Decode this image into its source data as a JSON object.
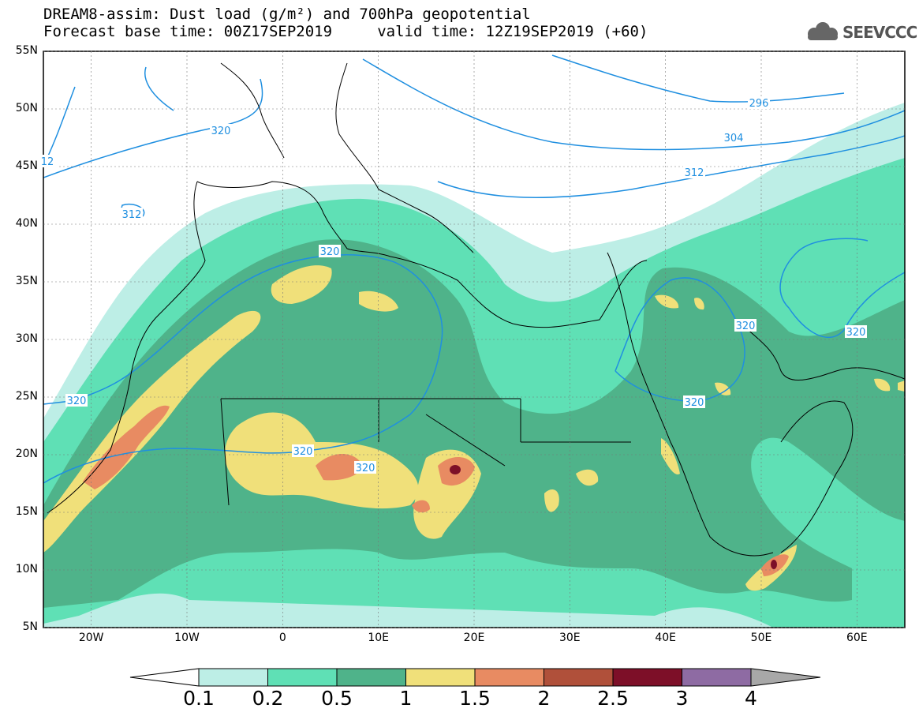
{
  "header": {
    "title_line1": "DREAM8-assim: Dust load (g/m²) and 700hPa geopotential",
    "title_line2": "Forecast base time: 00Z17SEP2019     valid time: 12Z19SEP2019 (+60)",
    "logo_text": "SEEVCCC"
  },
  "map": {
    "lat_labels": [
      "55N",
      "50N",
      "45N",
      "40N",
      "35N",
      "30N",
      "25N",
      "20N",
      "15N",
      "10N",
      "5N"
    ],
    "lon_labels": [
      "20W",
      "10W",
      "0",
      "10E",
      "20E",
      "30E",
      "40E",
      "50E",
      "60E"
    ],
    "lat_range": [
      5,
      55
    ],
    "lon_range": [
      -25,
      65
    ],
    "contour_labels": [
      "296",
      "304",
      "312",
      "312",
      "12",
      "320",
      "320",
      "320",
      "320",
      "320",
      "320",
      "320",
      "320"
    ]
  },
  "legend": {
    "levels": [
      "0.1",
      "0.2",
      "0.5",
      "1",
      "1.5",
      "2",
      "2.5",
      "3",
      "4"
    ],
    "colors": [
      "#bdeee6",
      "#5fe0b5",
      "#4fb38a",
      "#f0e07a",
      "#e88b62",
      "#b0503a",
      "#7d0f28",
      "#8e6ba3",
      "#a8a8a8"
    ]
  },
  "colors": {
    "land": "#ffffff",
    "contour_line": "#1f8fe0",
    "border": "#000000"
  }
}
